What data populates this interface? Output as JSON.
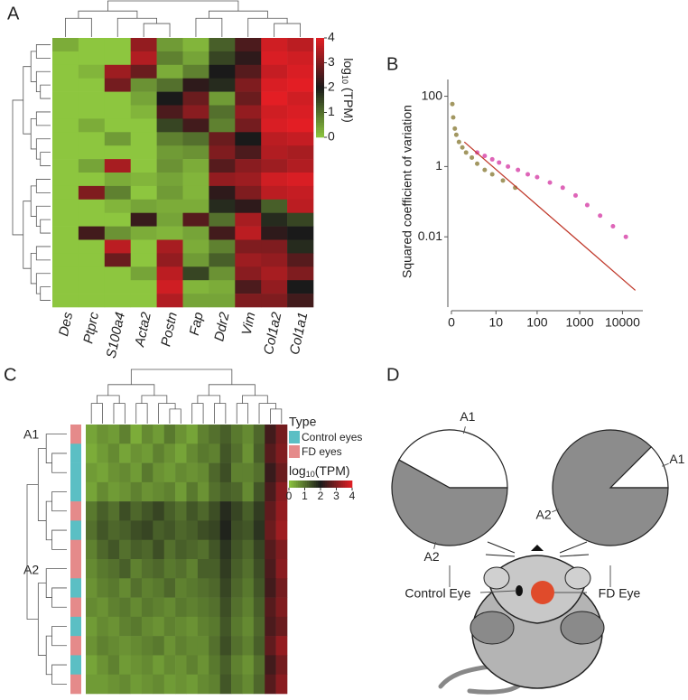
{
  "chart_data": [
    {
      "type": "heatmap",
      "panel": "A",
      "columns": [
        "Des",
        "Ptprc",
        "S100a4",
        "Acta2",
        "Postn",
        "Fap",
        "Ddr2",
        "Vim",
        "Col1a2",
        "Col1a1"
      ],
      "values": [
        [
          0.3,
          0,
          0,
          3.2,
          0.5,
          0.2,
          1.2,
          2.5,
          3.8,
          3.6
        ],
        [
          0,
          0,
          0,
          3.5,
          0.8,
          0.4,
          1.5,
          2.2,
          3.9,
          3.8
        ],
        [
          0,
          0.2,
          3.3,
          2.8,
          0.3,
          0.8,
          2.0,
          2.6,
          3.7,
          3.9
        ],
        [
          0,
          0,
          2.9,
          0.6,
          1.0,
          2.2,
          1.8,
          3.0,
          3.9,
          4.0
        ],
        [
          0,
          0,
          0,
          0.4,
          2.0,
          2.8,
          0.5,
          2.8,
          4.0,
          3.8
        ],
        [
          0,
          0,
          0,
          0.2,
          2.5,
          3.1,
          1.0,
          3.2,
          3.8,
          3.9
        ],
        [
          0,
          0.3,
          0,
          0,
          1.5,
          2.4,
          0.8,
          2.9,
          3.9,
          4.0
        ],
        [
          0,
          0,
          0.5,
          0,
          0.8,
          1.0,
          2.8,
          2.0,
          3.6,
          3.7
        ],
        [
          0,
          0,
          0,
          0,
          0.5,
          0.6,
          3.0,
          2.5,
          3.5,
          3.4
        ],
        [
          0,
          0.4,
          3.4,
          0,
          0.6,
          0.3,
          2.6,
          3.1,
          3.3,
          3.5
        ],
        [
          0,
          0,
          0.3,
          0.2,
          0.4,
          0.2,
          3.2,
          3.3,
          3.8,
          3.9
        ],
        [
          0,
          3.0,
          0.8,
          0,
          0.5,
          0.2,
          2.2,
          3.0,
          3.6,
          3.7
        ],
        [
          0,
          0,
          0.2,
          0.4,
          0.3,
          0.3,
          1.8,
          2.2,
          1.2,
          3.6
        ],
        [
          0,
          0,
          0,
          2.3,
          0.4,
          2.6,
          1.0,
          3.4,
          1.8,
          1.5
        ],
        [
          0,
          2.4,
          0.6,
          0.3,
          0.2,
          0.4,
          2.4,
          3.6,
          2.2,
          2.0
        ],
        [
          0,
          0,
          3.6,
          0,
          3.4,
          0.3,
          0.8,
          3.0,
          3.0,
          1.8
        ],
        [
          0,
          0,
          2.8,
          0,
          3.2,
          0.5,
          1.2,
          3.3,
          3.2,
          2.6
        ],
        [
          0,
          0,
          0,
          0.4,
          3.6,
          1.5,
          0.6,
          3.1,
          3.4,
          3.0
        ],
        [
          0,
          0,
          0,
          0,
          3.8,
          0.2,
          0.3,
          2.5,
          3.2,
          2.0
        ],
        [
          0,
          0,
          0,
          0,
          3.5,
          0.4,
          0.4,
          3.0,
          3.0,
          2.4
        ]
      ],
      "colorscale": [
        "#8dc63f",
        "#1a1a1a",
        "#e31e24"
      ],
      "clim": [
        0,
        4
      ],
      "cticks": [
        0,
        1,
        2,
        3,
        4
      ],
      "colorbar_label": {
        "base": "log",
        "sub": "10",
        "rest": " (TPM)"
      }
    },
    {
      "type": "scatter",
      "panel": "B",
      "ylabel": "Squared coefficient of variation",
      "xscale": "log1p",
      "yscale": "log",
      "xlim": [
        0,
        30000
      ],
      "xticks": [
        0,
        10,
        100,
        1000,
        10000
      ],
      "ylim": [
        0.0001,
        300
      ],
      "yticks": [
        100,
        1,
        0.01
      ],
      "series": [
        {
          "color": "#8b7d3a",
          "x": [
            0.05,
            0.1,
            0.2,
            0.3,
            0.5,
            0.8,
            1.2,
            2,
            3,
            5,
            8,
            15,
            30
          ],
          "values": [
            60,
            25,
            12,
            8,
            5,
            3.5,
            2.5,
            1.8,
            1.2,
            0.8,
            0.6,
            0.4,
            0.25
          ]
        },
        {
          "color": "#d63fa6",
          "x": [
            3,
            5,
            8,
            12,
            20,
            35,
            60,
            100,
            200,
            400,
            800,
            1500,
            3000,
            6000,
            12000
          ],
          "values": [
            2.5,
            2,
            1.6,
            1.3,
            1,
            0.8,
            0.6,
            0.5,
            0.35,
            0.25,
            0.15,
            0.08,
            0.04,
            0.02,
            0.01
          ]
        },
        {
          "type": "line",
          "color": "#c0392b",
          "x": [
            1,
            20000
          ],
          "values": [
            5,
            0.0003
          ]
        }
      ]
    },
    {
      "type": "heatmap",
      "panel": "C",
      "cluster_labels": [
        "A1",
        "A2"
      ],
      "legend_title": "Type",
      "types": [
        {
          "name": "Control eyes",
          "color": "#5bbfc4"
        },
        {
          "name": "FD eyes",
          "color": "#e58a8a"
        }
      ],
      "row_types": [
        1,
        0,
        0,
        0,
        1,
        0,
        1,
        1,
        0,
        1,
        0,
        1,
        0,
        1
      ],
      "values": [
        [
          0.4,
          0.6,
          0.5,
          0.8,
          0.3,
          0.7,
          0.5,
          0.9,
          0.6,
          0.4,
          0.8,
          1.0,
          1.2,
          0.9,
          0.7,
          1.1,
          2.4,
          2.9
        ],
        [
          0.3,
          0.5,
          0.7,
          0.4,
          0.6,
          0.5,
          0.8,
          0.6,
          0.4,
          0.7,
          0.9,
          0.8,
          1.3,
          1.0,
          0.6,
          1.2,
          2.6,
          3.0
        ],
        [
          0.5,
          0.4,
          0.6,
          0.7,
          0.5,
          0.9,
          0.6,
          0.5,
          0.7,
          0.6,
          0.7,
          1.1,
          1.4,
          0.8,
          0.8,
          1.0,
          2.3,
          2.8
        ],
        [
          0.4,
          0.7,
          0.5,
          0.6,
          0.8,
          0.6,
          0.7,
          0.8,
          0.5,
          0.9,
          0.6,
          1.0,
          1.2,
          1.1,
          0.7,
          1.3,
          2.5,
          3.1
        ],
        [
          0.9,
          1.2,
          1.0,
          1.4,
          1.1,
          1.3,
          1.5,
          1.2,
          1.0,
          1.3,
          1.1,
          1.4,
          1.8,
          1.5,
          1.2,
          1.6,
          2.7,
          3.2
        ],
        [
          1.0,
          1.3,
          1.1,
          1.2,
          1.4,
          1.5,
          1.2,
          1.3,
          1.1,
          1.2,
          1.4,
          1.5,
          1.9,
          1.4,
          1.3,
          1.7,
          2.8,
          3.3
        ],
        [
          0.8,
          1.1,
          1.3,
          1.0,
          1.2,
          1.1,
          1.4,
          1.0,
          1.2,
          1.1,
          1.0,
          1.3,
          1.7,
          1.3,
          1.1,
          1.5,
          2.6,
          3.0
        ],
        [
          0.7,
          0.9,
          1.0,
          1.2,
          0.8,
          1.0,
          1.1,
          0.9,
          1.0,
          0.8,
          1.2,
          1.2,
          1.6,
          1.2,
          1.0,
          1.4,
          2.5,
          3.1
        ],
        [
          0.6,
          0.8,
          0.9,
          0.7,
          1.0,
          0.8,
          0.9,
          1.1,
          0.8,
          0.9,
          1.0,
          1.1,
          1.5,
          1.1,
          0.9,
          1.3,
          2.4,
          2.9
        ],
        [
          0.7,
          0.6,
          0.8,
          0.9,
          0.7,
          0.9,
          0.8,
          0.7,
          0.9,
          0.8,
          0.9,
          1.0,
          1.4,
          1.0,
          0.8,
          1.2,
          2.6,
          3.0
        ],
        [
          0.5,
          0.7,
          0.6,
          0.8,
          0.9,
          0.7,
          0.6,
          0.8,
          0.7,
          0.6,
          0.8,
          0.9,
          1.3,
          0.9,
          0.7,
          1.1,
          2.5,
          2.8
        ],
        [
          0.6,
          0.8,
          0.7,
          0.6,
          0.7,
          0.8,
          0.9,
          0.6,
          0.8,
          0.7,
          0.7,
          1.0,
          1.4,
          1.0,
          0.8,
          1.2,
          2.7,
          3.2
        ],
        [
          0.4,
          0.6,
          0.8,
          0.5,
          0.6,
          0.7,
          0.5,
          0.7,
          0.6,
          0.8,
          0.6,
          0.9,
          1.2,
          0.8,
          0.6,
          1.0,
          2.4,
          2.9
        ],
        [
          0.5,
          0.5,
          0.6,
          0.7,
          0.5,
          0.6,
          0.7,
          0.5,
          0.6,
          0.5,
          0.7,
          0.8,
          1.3,
          0.9,
          0.7,
          1.1,
          2.6,
          3.1
        ]
      ],
      "colorscale": [
        "#8dc63f",
        "#1a1a1a",
        "#e31e24"
      ],
      "clim": [
        0,
        4
      ],
      "cticks": [
        0,
        1,
        2,
        3,
        4
      ],
      "colorbar_label": {
        "base": "log",
        "sub": "10",
        "rest": "(TPM)"
      }
    },
    {
      "type": "pie",
      "panel": "D",
      "pies": [
        {
          "title": "Control Eye",
          "categories": [
            "A1",
            "A2"
          ],
          "values": [
            42,
            58
          ],
          "colors": [
            "#ffffff",
            "#8c8c8c"
          ]
        },
        {
          "title": "FD Eye",
          "categories": [
            "A1",
            "A2"
          ],
          "values": [
            12.5,
            87.5
          ],
          "colors": [
            "#ffffff",
            "#8c8c8c"
          ]
        }
      ]
    }
  ]
}
